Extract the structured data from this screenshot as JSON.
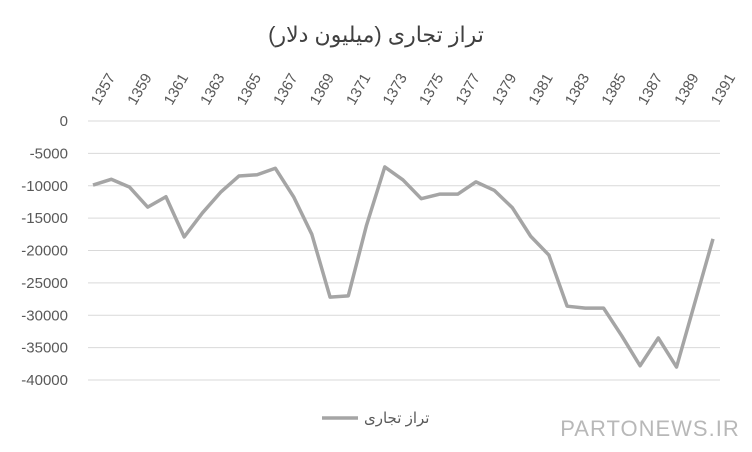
{
  "chart_data": {
    "type": "line",
    "title": "تراز تجاری (میلیون دلار)",
    "categories": [
      "1357",
      null,
      "1359",
      null,
      "1361",
      null,
      "1363",
      null,
      "1365",
      null,
      "1367",
      null,
      "1369",
      null,
      "1371",
      null,
      "1373",
      null,
      "1375",
      null,
      "1377",
      null,
      "1379",
      null,
      "1381",
      null,
      "1383",
      null,
      "1385",
      null,
      "1387",
      null,
      "1389",
      null,
      "1391"
    ],
    "series": [
      {
        "name": "تراز تجاری",
        "color": "#a5a5a5",
        "values": [
          -9900,
          -9000,
          -10200,
          -13300,
          -11700,
          -17900,
          -14200,
          -11000,
          -8500,
          -8300,
          -7300,
          -11700,
          -17500,
          -27200,
          -27000,
          -16100,
          -7100,
          -9100,
          -12000,
          -11300,
          -11300,
          -9400,
          -10700,
          -13400,
          -17800,
          -20700,
          -28600,
          -28900,
          -28900,
          -33200,
          -37800,
          -33500,
          -38000,
          -28100,
          -18200
        ]
      }
    ],
    "ylim": [
      -40000,
      0
    ],
    "yticks": [
      0,
      -5000,
      -10000,
      -15000,
      -20000,
      -25000,
      -30000,
      -35000,
      -40000
    ],
    "grid": true,
    "legend": "bottom",
    "watermark": "PARTONEWS.IR"
  }
}
